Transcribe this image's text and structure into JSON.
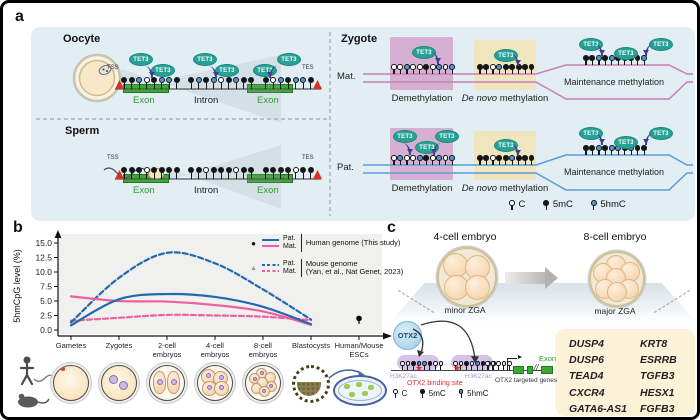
{
  "figure": {
    "panel_a": "a",
    "panel_b": "b",
    "panel_c": "c"
  },
  "labels": {
    "tet3": "TET3",
    "tss": "TSS",
    "tes": "TES",
    "exon": "Exon",
    "intron": "Intron"
  },
  "panel_a": {
    "oocyte_title": "Oocyte",
    "sperm_title": "Sperm",
    "zygote_title": "Zygote",
    "mat_label": "Mat.",
    "pat_label": "Pat.",
    "demethylation_label": "Demethylation",
    "de_novo_italic": "De novo",
    "de_novo_rest": "methylation",
    "maintenance_label": "Maintenance methylation",
    "legend": {
      "c": "C",
      "mc": "5mC",
      "hmc": "5hmC"
    },
    "patterns": {
      "oocyte": "mmhcmhhm mhmhcmhmm mchmhhm",
      "sperm": "mmmcmmmm mmcmmmcmm mmmmcmm",
      "mat_demethylation": "cchccmchch",
      "mat_de_novo": "mmchmmmmm",
      "mat_maintenance": "mmhmhmhmmh",
      "pat_demethylation": "chcchmchch",
      "pat_de_novo": "mmcmmhmmm",
      "pat_maintenance": "mmhmhhmhmm"
    }
  },
  "chart_data": {
    "type": "line",
    "title": "",
    "xlabel": "",
    "ylabel": "5hmCpG level (%)",
    "ylim": [
      0,
      15
    ],
    "yticks": [
      0,
      2.5,
      5,
      7.5,
      10,
      12.5,
      15
    ],
    "categories": [
      "Gametes",
      "Zygotes",
      "2-cell\nembryos",
      "4-cell\nembryos",
      "8-cell\nembryos",
      "Blastocysts",
      "Human/Mouse\nESCs"
    ],
    "series": [
      {
        "name": "Pat. Human genome (This study)",
        "color": "#2468ad",
        "style": "solid",
        "values": [
          0.8,
          5.3,
          6.2,
          5.7,
          4.0,
          1.0
        ]
      },
      {
        "name": "Mat. Human genome (This study)",
        "color": "#ee5f9f",
        "style": "solid",
        "values": [
          5.8,
          5.0,
          4.9,
          4.3,
          3.2,
          0.9
        ]
      },
      {
        "name": "Pat. Mouse genome (Yan, et al., Nat Genet, 2023)",
        "color": "#2468ad",
        "style": "dashed",
        "values": [
          1.3,
          9.0,
          13.3,
          11.5,
          7.0,
          1.8
        ]
      },
      {
        "name": "Mat. Mouse genome (Yan, et al., Nat Genet, 2023)",
        "color": "#ee5f9f",
        "style": "dashed",
        "values": [
          1.6,
          2.1,
          2.6,
          2.5,
          2.3,
          1.7
        ]
      }
    ],
    "extra_points": [
      {
        "label": "Human/Mouse ESCs",
        "x_index": 6,
        "value": 2.0,
        "color": "#000000"
      }
    ],
    "legend_position": "top-right",
    "grid": false,
    "legend": {
      "human": {
        "pat": "Pat.",
        "mat": "Mat.",
        "label": "Human genome (This study)"
      },
      "mouse": {
        "pat": "Pat.",
        "mat": "Mat.",
        "line1": "Mouse genome",
        "line2": "(Yan, et al., Nat Genet, 2023)"
      }
    }
  },
  "panel_c": {
    "title_4cell": "4-cell embryo",
    "title_8cell": "8-cell embryo",
    "minor_zga": "minor ZGA",
    "major_zga": "major ZGA",
    "otx2": "OTX2",
    "h3k27ac": "H3K27ac",
    "otx2_binding_site": "OTX2 binding site",
    "otx2_targeted_genes": "OTX2 targeted genes",
    "exon": "Exon",
    "gene_break": "//",
    "legend": {
      "c": "C",
      "mc": "5mC",
      "hmc": "5hmC"
    },
    "genes": {
      "left": [
        "DUSP4",
        "DUSP6",
        "TEAD4",
        "CXCR4",
        "GATA6-AS1"
      ],
      "right": [
        "KRT8",
        "ESRRB",
        "TGFB3",
        "HESX1",
        "FGFB3"
      ]
    },
    "patterns": {
      "site_left": "ccmhhmcc",
      "site_right": "ccmchmcc",
      "promoter": "ccccc"
    }
  }
}
